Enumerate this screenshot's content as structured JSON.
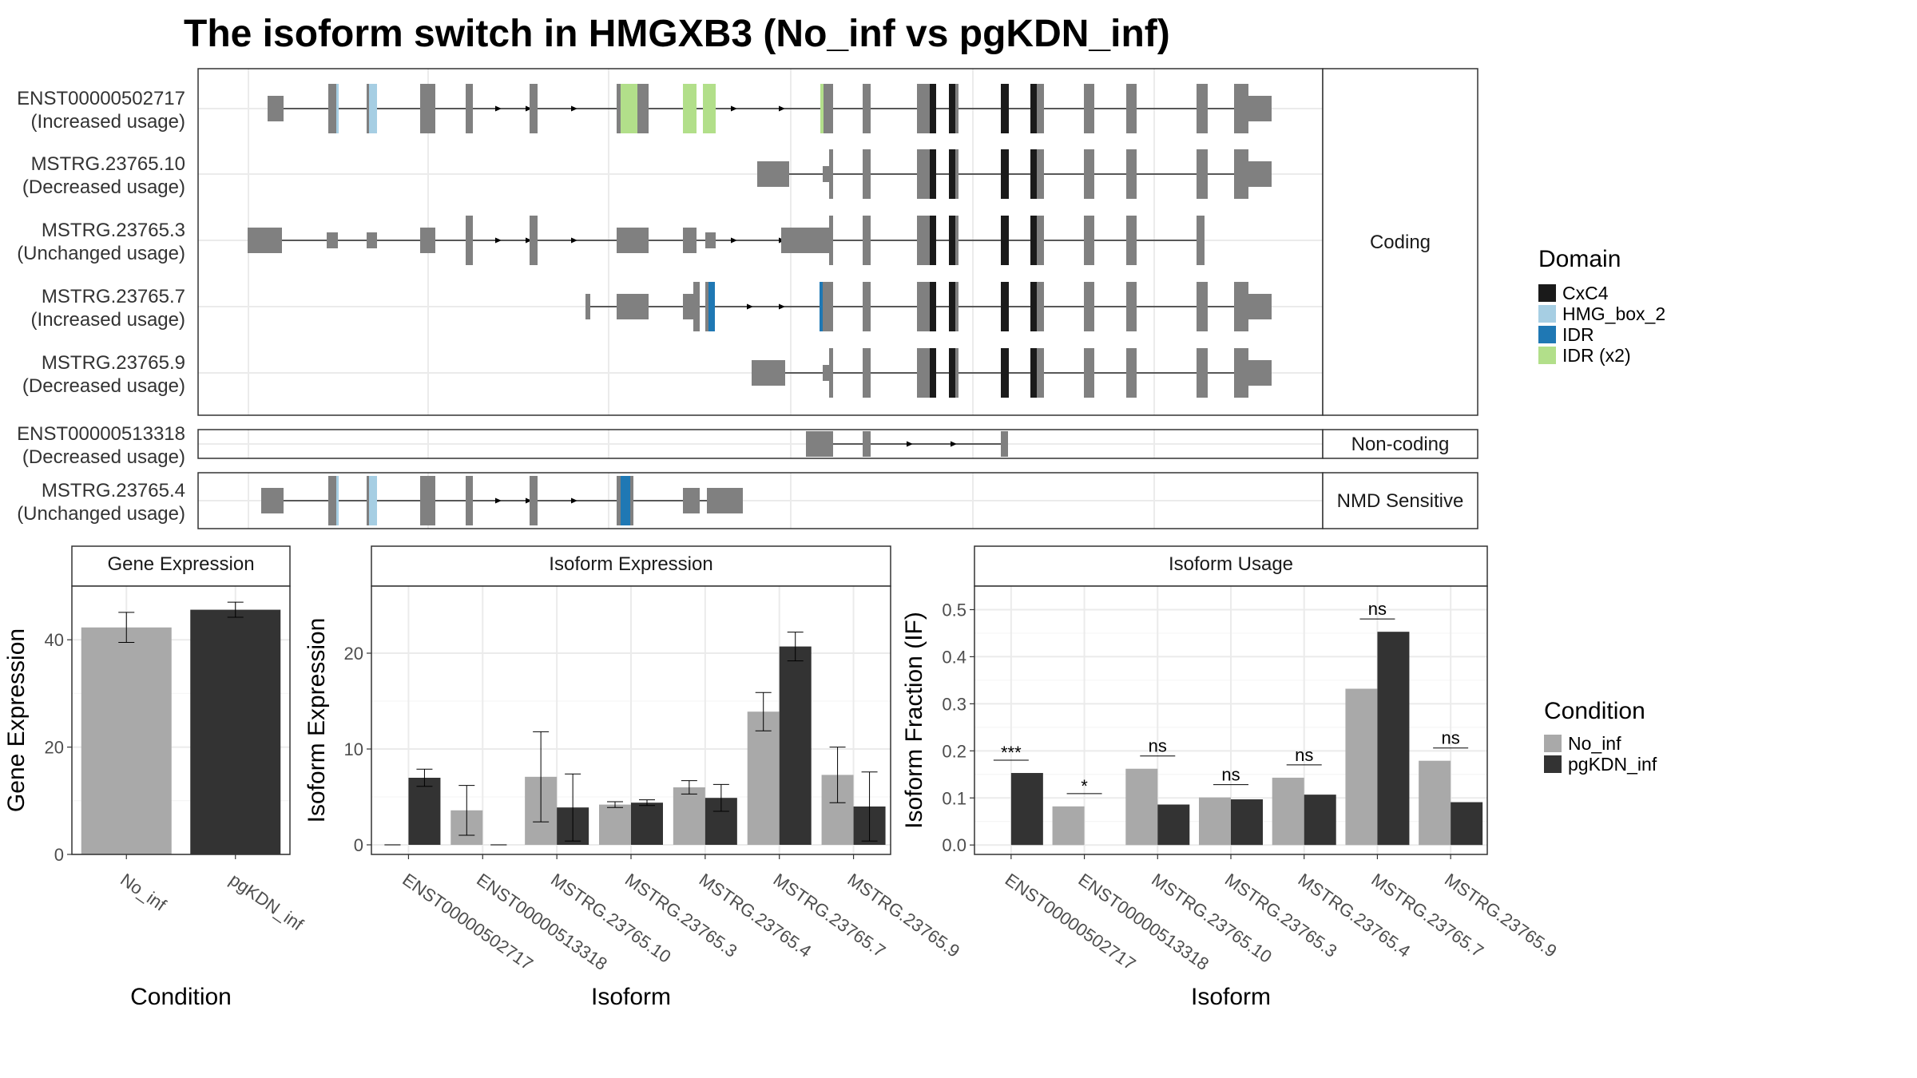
{
  "title": "The isoform switch in HMGXB3 (No_inf vs pgKDN_inf)",
  "colors": {
    "exon": "#808080",
    "CxC4": "#1a1a1a",
    "HMG_box_2": "#a6cee3",
    "IDR": "#1f78b4",
    "IDR (x2)": "#b2df8a",
    "No_inf": "#a9a9a9",
    "pgKDN_inf": "#333333"
  },
  "chart_data": [
    {
      "type": "other",
      "panel": "isoform structures",
      "categories": [
        "Coding",
        "Non-coding",
        "NMD Sensitive"
      ],
      "isoforms": [
        {
          "name": "ENST00000502717",
          "usage": "(Increased usage)",
          "category": "Coding"
        },
        {
          "name": "MSTRG.23765.10",
          "usage": "(Decreased usage)",
          "category": "Coding"
        },
        {
          "name": "MSTRG.23765.3",
          "usage": "(Unchanged usage)",
          "category": "Coding"
        },
        {
          "name": "MSTRG.23765.7",
          "usage": "(Increased usage)",
          "category": "Coding"
        },
        {
          "name": "MSTRG.23765.9",
          "usage": "(Decreased usage)",
          "category": "Coding"
        },
        {
          "name": "ENST00000513318",
          "usage": "(Decreased usage)",
          "category": "Non-coding"
        },
        {
          "name": "MSTRG.23765.4",
          "usage": "(Unchanged usage)",
          "category": "NMD Sensitive"
        }
      ],
      "legend": {
        "title": "Domain",
        "entries": [
          "CxC4",
          "HMG_box_2",
          "IDR",
          "IDR (x2)"
        ]
      }
    },
    {
      "type": "bar",
      "strip": "Gene Expression",
      "xlabel": "Condition",
      "ylabel": "Gene Expression",
      "ylim": [
        0,
        50
      ],
      "yticks": [
        "0",
        "20",
        "40"
      ],
      "categories": [
        "No_inf",
        "pgKDN_inf"
      ],
      "values": [
        42.3,
        45.6
      ],
      "errors": [
        2.8,
        1.4
      ]
    },
    {
      "type": "bar",
      "strip": "Isoform Expression",
      "xlabel": "Isoform",
      "ylabel": "Isoform Expression",
      "ylim": [
        -1,
        27
      ],
      "yticks": [
        "0",
        "10",
        "20"
      ],
      "categories": [
        "ENST00000502717",
        "ENST00000513318",
        "MSTRG.23765.10",
        "MSTRG.23765.3",
        "MSTRG.23765.4",
        "MSTRG.23765.7",
        "MSTRG.23765.9"
      ],
      "series": [
        {
          "name": "No_inf",
          "values": [
            0.0,
            3.6,
            7.1,
            4.2,
            6.0,
            13.9,
            7.3
          ],
          "errors": [
            0.0,
            2.6,
            4.7,
            0.3,
            0.7,
            2.0,
            2.9
          ]
        },
        {
          "name": "pgKDN_inf",
          "values": [
            7.0,
            0.0,
            3.9,
            4.4,
            4.9,
            20.7,
            4.0
          ],
          "errors": [
            0.9,
            0.0,
            3.5,
            0.3,
            1.4,
            1.5,
            3.6
          ]
        }
      ]
    },
    {
      "type": "bar",
      "strip": "Isoform Usage",
      "xlabel": "Isoform",
      "ylabel": "Isoform Fraction (IF)",
      "ylim": [
        -0.02,
        0.55
      ],
      "yticks": [
        "0.0",
        "0.1",
        "0.2",
        "0.3",
        "0.4",
        "0.5"
      ],
      "categories": [
        "ENST00000502717",
        "ENST00000513318",
        "MSTRG.23765.10",
        "MSTRG.23765.3",
        "MSTRG.23765.4",
        "MSTRG.23765.7",
        "MSTRG.23765.9"
      ],
      "series": [
        {
          "name": "No_inf",
          "values": [
            0.0,
            0.082,
            0.162,
            0.101,
            0.143,
            0.332,
            0.179
          ]
        },
        {
          "name": "pgKDN_inf",
          "values": [
            0.153,
            0.0,
            0.086,
            0.097,
            0.107,
            0.453,
            0.091
          ]
        }
      ],
      "significance": [
        "***",
        "*",
        "ns",
        "ns",
        "ns",
        "ns",
        "ns"
      ],
      "legend": {
        "title": "Condition",
        "entries": [
          "No_inf",
          "pgKDN_inf"
        ]
      }
    }
  ]
}
